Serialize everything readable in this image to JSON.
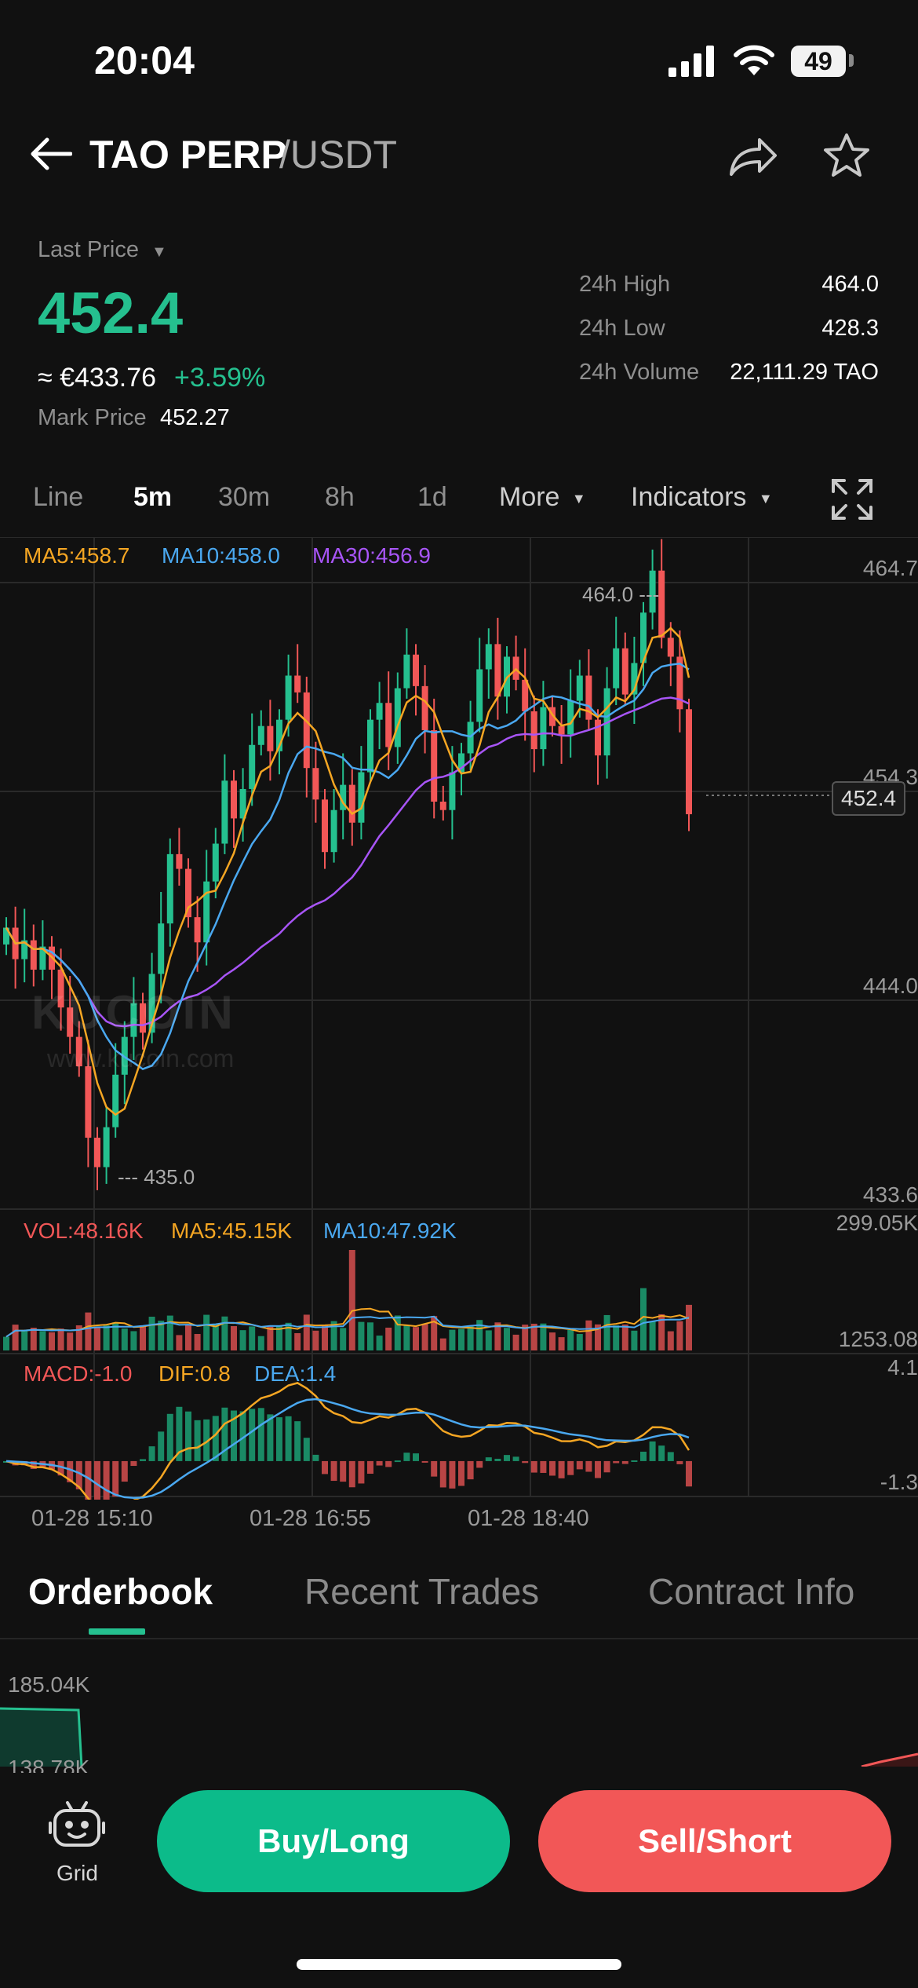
{
  "status_bar": {
    "time": "20:04",
    "battery": "49"
  },
  "header": {
    "title": "TAO PERP",
    "quote": "/USDT"
  },
  "price": {
    "last_price_label": "Last Price",
    "last_price": "452.4",
    "fiat": "≈ €433.76",
    "change": "+3.59%",
    "mark_price_label": "Mark Price",
    "mark_price": "452.27"
  },
  "stats": [
    {
      "label": "24h High",
      "value": "464.0"
    },
    {
      "label": "24h Low",
      "value": "428.3"
    },
    {
      "label": "24h Volume",
      "value": "22,111.29 TAO"
    }
  ],
  "timeframes": [
    "Line",
    "5m",
    "30m",
    "8h",
    "1d"
  ],
  "active_timeframe": "5m",
  "more_label": "More",
  "indicators_label": "Indicators",
  "ma_legend": {
    "ma5": "MA5:458.7",
    "ma10": "MA10:458.0",
    "ma30": "MA30:456.9"
  },
  "price_axis": [
    "464.7",
    "454.3",
    "444.0",
    "433.6"
  ],
  "current_price_tag": "452.4",
  "high_marker": "464.0",
  "low_marker": "435.0",
  "watermark": {
    "brand": "KUCOIN",
    "url": "www.kucoin.com"
  },
  "volume_legend": {
    "vol": "VOL:48.16K",
    "ma5": "MA5:45.15K",
    "ma10": "MA10:47.92K"
  },
  "volume_axis": [
    "299.05K",
    "1253.08"
  ],
  "macd_legend": {
    "macd": "MACD:-1.0",
    "dif": "DIF:0.8",
    "dea": "DEA:1.4"
  },
  "macd_axis": [
    "4.1",
    "-1.3"
  ],
  "time_axis": [
    "01-28 15:10",
    "01-28 16:55",
    "01-28 18:40"
  ],
  "bottom_tabs": [
    "Orderbook",
    "Recent Trades",
    "Contract Info"
  ],
  "depth_axis": [
    "185.04K",
    "138.78K"
  ],
  "grid_label": "Grid",
  "buy_label": "Buy/Long",
  "sell_label": "Sell/Short",
  "colors": {
    "up": "#25c08f",
    "down": "#f25757",
    "ma5": "#f5a623",
    "ma10": "#4aa8f0",
    "ma30": "#a855f7",
    "background": "#111111"
  },
  "chart_data": {
    "type": "candlestick",
    "closes": [
      447.0,
      445.5,
      446.4,
      445.0,
      446.1,
      445.0,
      443.2,
      441.8,
      440.4,
      437.0,
      435.6,
      437.5,
      440.0,
      441.8,
      443.4,
      442.0,
      444.8,
      447.2,
      450.5,
      449.8,
      447.5,
      446.3,
      449.2,
      451.0,
      454.0,
      452.2,
      453.6,
      455.7,
      456.6,
      455.4,
      456.9,
      459.0,
      458.2,
      454.6,
      453.1,
      450.6,
      452.6,
      453.8,
      452.0,
      454.4,
      456.9,
      457.7,
      455.6,
      458.4,
      460.0,
      458.5,
      456.4,
      453.0,
      452.6,
      454.4,
      455.3,
      456.8,
      459.3,
      460.5,
      458.0,
      459.9,
      458.8,
      457.3,
      455.5,
      457.5,
      456.6,
      456.2,
      457.8,
      459.0,
      456.9,
      455.2,
      458.4,
      460.3,
      458.1,
      459.6,
      462.0,
      464.0,
      460.8,
      459.9,
      457.4,
      452.4
    ],
    "price_range": [
      433.6,
      464.7
    ],
    "volume_range": [
      1253.08,
      299050
    ],
    "macd_range": [
      -1.3,
      4.1
    ]
  }
}
